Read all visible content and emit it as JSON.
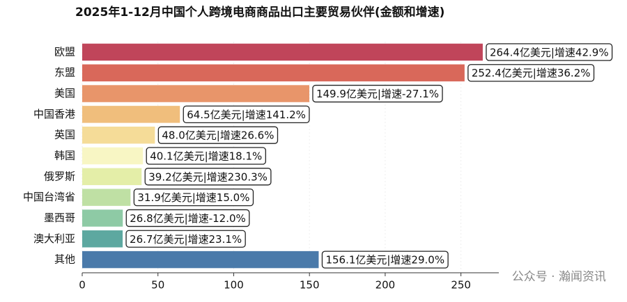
{
  "chart_data": {
    "type": "bar",
    "orientation": "horizontal",
    "title": "2025年1-12月中国个人跨境电商商品出口主要贸易伙伴(金额和增速)",
    "categories": [
      "欧盟",
      "东盟",
      "美国",
      "中国香港",
      "英国",
      "韩国",
      "俄罗斯",
      "中国台湾省",
      "墨西哥",
      "澳大利亚",
      "其他"
    ],
    "values": [
      264.4,
      252.4,
      149.9,
      64.5,
      48.0,
      40.1,
      39.2,
      31.9,
      26.8,
      26.7,
      156.1
    ],
    "value_labels": [
      "264.4亿美元|增速42.9%",
      "252.4亿美元|增速36.2%",
      "149.9亿美元|增速-27.1%",
      "64.5亿美元|增速141.2%",
      "48.0亿美元|增速26.6%",
      "40.1亿美元|增速18.1%",
      "39.2亿美元|增速230.3%",
      "31.9亿美元|增速15.0%",
      "26.8亿美元|增速-12.0%",
      "26.7亿美元|增速23.1%",
      "156.1亿美元|增速29.0%"
    ],
    "colors": [
      "#c0455a",
      "#d9685a",
      "#e8956a",
      "#f0be7c",
      "#f5dc98",
      "#f8f6c4",
      "#e4eea8",
      "#bfe0a4",
      "#8ecaa5",
      "#5da8a0",
      "#4a7aaa"
    ],
    "xlim": [
      0,
      275
    ],
    "xticks": [
      0,
      50,
      100,
      150,
      200,
      250
    ],
    "grid": true,
    "watermark": "公众号 · 瀚闻资讯"
  }
}
